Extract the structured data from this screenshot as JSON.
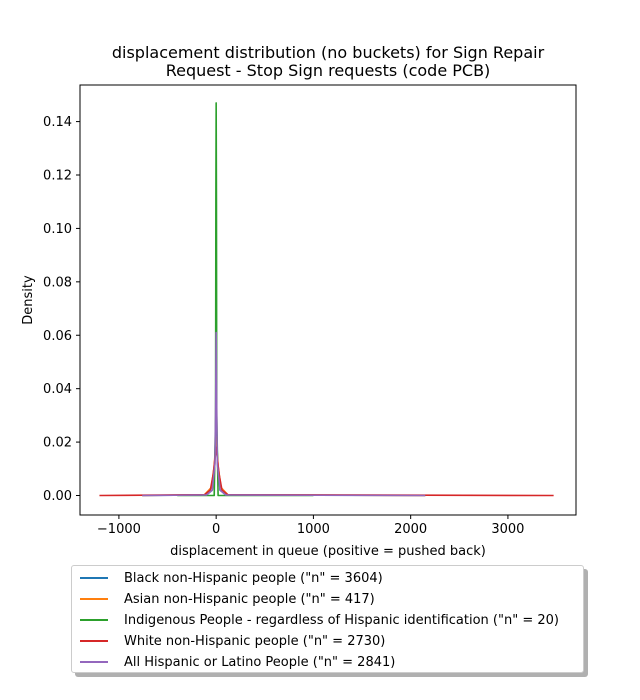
{
  "chart_data": {
    "type": "line",
    "title_line1": "displacement distribution (no buckets)  for Sign Repair",
    "title_line2": "Request - Stop Sign requests (code PCB)",
    "xlabel": "displacement in queue (positive = pushed back)",
    "ylabel": "Density",
    "xlim": [
      -1400,
      3700
    ],
    "ylim": [
      -0.0073,
      0.1537
    ],
    "xticks": [
      -1000,
      0,
      1000,
      2000,
      3000
    ],
    "xtick_labels": [
      "−1000",
      "0",
      "1000",
      "2000",
      "3000"
    ],
    "yticks": [
      0.0,
      0.02,
      0.04,
      0.06,
      0.08,
      0.1,
      0.12,
      0.14
    ],
    "ytick_labels": [
      "0.00",
      "0.02",
      "0.04",
      "0.06",
      "0.08",
      "0.10",
      "0.12",
      "0.14"
    ],
    "series": [
      {
        "name": "Black non-Hispanic people (\"n\" = 3604)",
        "color": "#1f77b4",
        "x": [
          -760,
          -100,
          -40,
          -15,
          0,
          15,
          40,
          100,
          2150
        ],
        "y": [
          0.0,
          0.0002,
          0.002,
          0.012,
          0.03,
          0.012,
          0.002,
          0.0002,
          0.0
        ]
      },
      {
        "name": "Asian non-Hispanic people (\"n\" = 417)",
        "color": "#ff7f0e",
        "x": [
          -760,
          -120,
          -50,
          -20,
          0,
          20,
          50,
          120,
          2150
        ],
        "y": [
          0.0,
          0.0003,
          0.003,
          0.011,
          0.022,
          0.011,
          0.003,
          0.0003,
          0.0
        ]
      },
      {
        "name": "Indigenous People - regardless of Hispanic identification (\"n\" = 20)",
        "color": "#2ca02c",
        "x": [
          -400,
          -20,
          -6,
          -3,
          0,
          3,
          6,
          20,
          1000
        ],
        "y": [
          0.0,
          0.0,
          0.03,
          0.11,
          0.147,
          0.11,
          0.03,
          0.0,
          0.0
        ]
      },
      {
        "name": "White non-Hispanic people (\"n\" = 2730)",
        "color": "#d62728",
        "x": [
          -1200,
          -120,
          -60,
          -30,
          0,
          30,
          60,
          120,
          3470
        ],
        "y": [
          0.0,
          0.0003,
          0.002,
          0.008,
          0.018,
          0.008,
          0.002,
          0.0003,
          0.0
        ]
      },
      {
        "name": "All Hispanic or Latino People (\"n\" = 2841)",
        "color": "#9467bd",
        "x": [
          -760,
          -100,
          -40,
          -12,
          -5,
          0,
          5,
          12,
          40,
          100,
          2150
        ],
        "y": [
          0.0,
          0.0002,
          0.002,
          0.012,
          0.035,
          0.061,
          0.035,
          0.012,
          0.002,
          0.0002,
          0.0
        ]
      }
    ]
  }
}
